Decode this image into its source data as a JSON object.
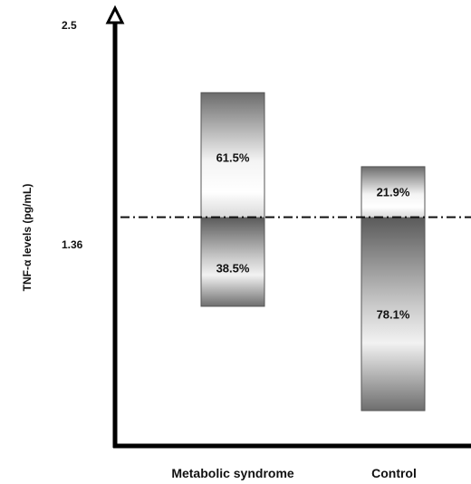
{
  "chart_data": {
    "type": "bar",
    "title": "",
    "xlabel": "",
    "ylabel": "TNF-α levels (pg/mL)",
    "ylim": [
      0,
      2.5
    ],
    "y_ticks": [
      "2.5",
      "1.36"
    ],
    "reference_line": {
      "value": 1.36,
      "style": "dash-dot"
    },
    "categories": [
      "Metabolic syndrome",
      "Control"
    ],
    "bars": [
      {
        "category": "Metabolic syndrome",
        "low": 0.83,
        "high": 2.1,
        "above_label": "61.5%",
        "below_label": "38.5%"
      },
      {
        "category": "Control",
        "low": 0.21,
        "high": 1.66,
        "above_label": "21.9%",
        "below_label": "78.1%"
      }
    ],
    "grid": false,
    "legend": "none"
  }
}
